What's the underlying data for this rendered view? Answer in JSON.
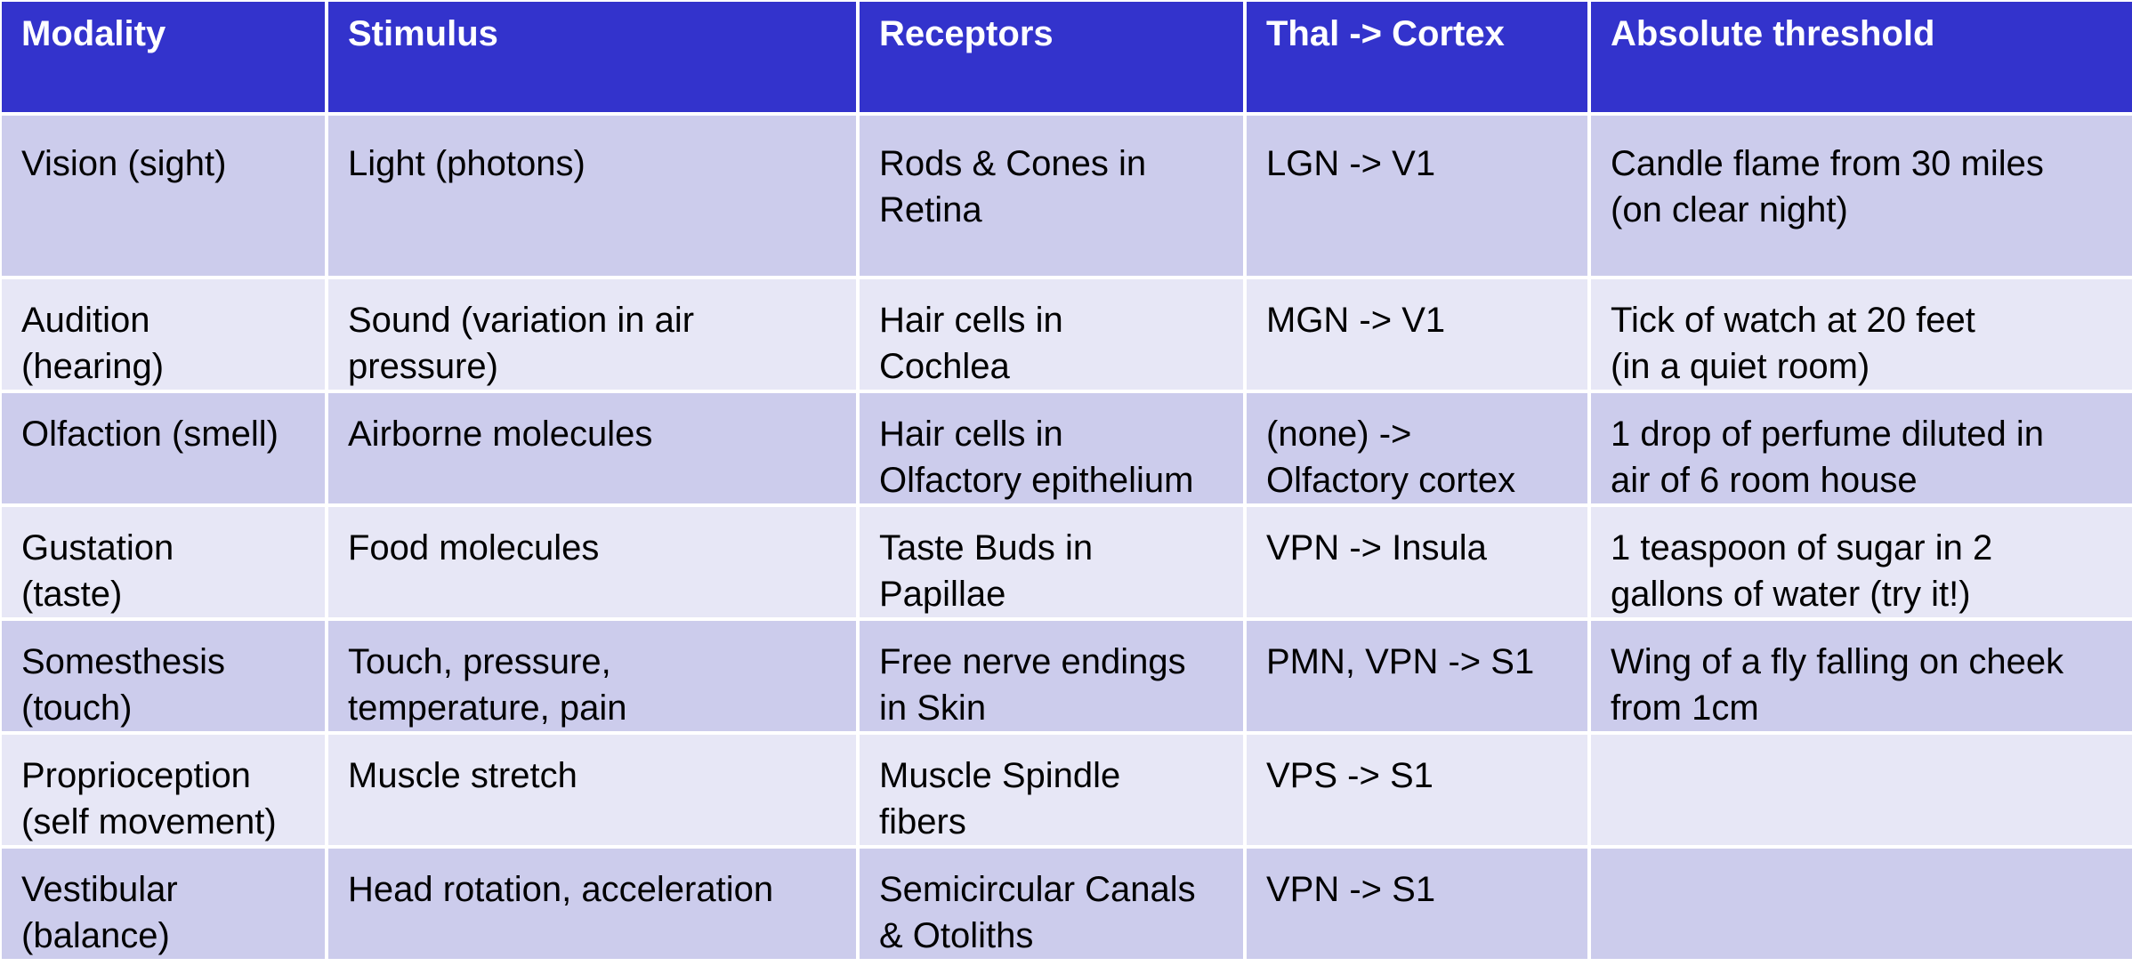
{
  "table": {
    "headers": [
      "Modality",
      "Stimulus",
      "Receptors",
      "Thal -> Cortex",
      "Absolute threshold"
    ],
    "rows": [
      {
        "modality": [
          "Vision (sight)"
        ],
        "stimulus": [
          "Light (photons)"
        ],
        "receptors": [
          "Rods & Cones in",
          "Retina"
        ],
        "thal_cortex": [
          "LGN -> V1"
        ],
        "threshold": [
          "Candle flame from 30 miles",
          "(on clear night)"
        ]
      },
      {
        "modality": [
          "Audition",
          "(hearing)"
        ],
        "stimulus": [
          "Sound (variation in air",
          "pressure)"
        ],
        "receptors": [
          "Hair cells in",
          "Cochlea"
        ],
        "thal_cortex": [
          "MGN -> V1"
        ],
        "threshold": [
          "Tick of watch at 20 feet",
          "(in a quiet room)"
        ]
      },
      {
        "modality": [
          "Olfaction (smell)"
        ],
        "stimulus": [
          "Airborne molecules"
        ],
        "receptors": [
          "Hair cells in",
          "Olfactory epithelium"
        ],
        "thal_cortex": [
          "(none) ->",
          "Olfactory cortex"
        ],
        "threshold": [
          "1 drop of perfume diluted in",
          "air of 6 room house"
        ]
      },
      {
        "modality": [
          "Gustation",
          "(taste)"
        ],
        "stimulus": [
          "Food molecules"
        ],
        "receptors": [
          "Taste Buds in",
          "Papillae"
        ],
        "thal_cortex": [
          "VPN -> Insula"
        ],
        "threshold": [
          "1 teaspoon of sugar in 2",
          "gallons of water (try it!)"
        ]
      },
      {
        "modality": [
          "Somesthesis",
          "(touch)"
        ],
        "stimulus": [
          "Touch, pressure,",
          "temperature, pain"
        ],
        "receptors": [
          "Free nerve endings",
          "in Skin"
        ],
        "thal_cortex": [
          "PMN, VPN -> S1"
        ],
        "threshold": [
          "Wing of a fly falling on cheek",
          "from 1cm"
        ]
      },
      {
        "modality": [
          "Proprioception",
          "(self movement)"
        ],
        "stimulus": [
          "Muscle stretch"
        ],
        "receptors": [
          "Muscle Spindle",
          "fibers"
        ],
        "thal_cortex": [
          "VPS -> S1"
        ],
        "threshold": []
      },
      {
        "modality": [
          "Vestibular",
          "(balance)"
        ],
        "stimulus": [
          "Head rotation, acceleration"
        ],
        "receptors": [
          "Semicircular Canals",
          "& Otoliths"
        ],
        "thal_cortex": [
          "VPN -> S1"
        ],
        "threshold": []
      }
    ]
  },
  "colors": {
    "header_bg": "#3333cc",
    "header_text": "#ffffff",
    "row_odd_bg": "#ccccec",
    "row_even_bg": "#e7e7f6"
  }
}
